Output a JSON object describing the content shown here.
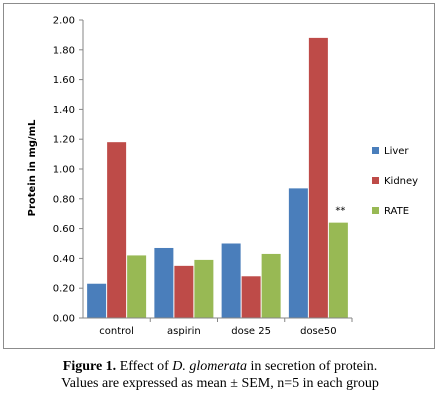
{
  "chart_data": {
    "type": "bar",
    "categories": [
      "control",
      "aspirin",
      "dose 25",
      "dose50"
    ],
    "series": [
      {
        "name": "Liver",
        "values": [
          0.23,
          0.47,
          0.5,
          0.87
        ],
        "color": "#4a7ebb"
      },
      {
        "name": "Kidney",
        "values": [
          1.18,
          0.35,
          0.28,
          1.88
        ],
        "color": "#be4b48"
      },
      {
        "name": "RATE",
        "values": [
          0.42,
          0.39,
          0.43,
          0.64
        ],
        "color": "#98b954"
      }
    ],
    "title": "",
    "xlabel": "",
    "ylabel": "Protein in mg/mL",
    "ylim": [
      0,
      2
    ],
    "yticks": [
      "0.00",
      "0.20",
      "0.40",
      "0.60",
      "0.80",
      "1.00",
      "1.20",
      "1.40",
      "1.60",
      "1.80",
      "2.00"
    ],
    "grid": false,
    "legend_position": "right",
    "annotations": [
      {
        "text": "**",
        "category": "dose50",
        "series": "RATE"
      }
    ]
  },
  "caption": {
    "label": "Figure 1.",
    "text_before": " Effect of ",
    "species": "D. glomerata",
    "text_after": " in secretion of protein.",
    "line2": "Values are expressed as mean ± SEM, n=5 in each group"
  }
}
